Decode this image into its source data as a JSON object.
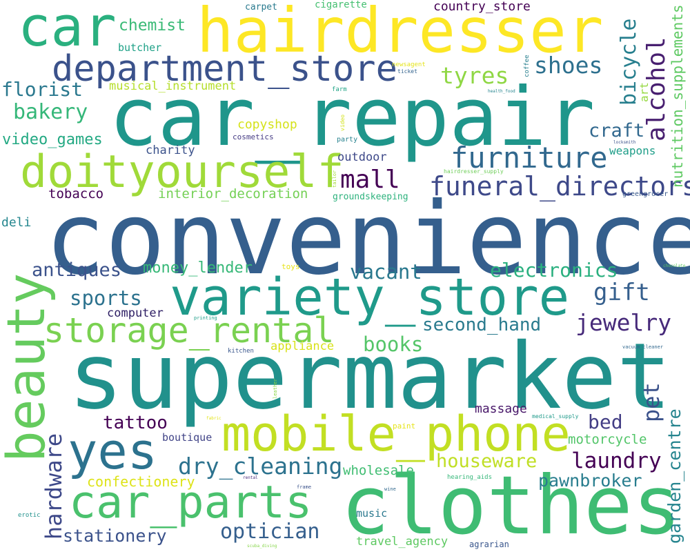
{
  "wordcloud": {
    "words": [
      {
        "text": "convenience",
        "color": "#355f8d"
      },
      {
        "text": "supermarket",
        "color": "#21918c"
      },
      {
        "text": "car_repair",
        "color": "#1f968b"
      },
      {
        "text": "clothes",
        "color": "#3fbc73"
      },
      {
        "text": "hairdresser",
        "color": "#fde725"
      },
      {
        "text": "car",
        "color": "#2ab07f"
      },
      {
        "text": "variety_store",
        "color": "#1f9a8a"
      },
      {
        "text": "mobile_phone",
        "color": "#c2df23"
      },
      {
        "text": "doityourself",
        "color": "#a0da39"
      },
      {
        "text": "department_store",
        "color": "#3b528b"
      },
      {
        "text": "car_parts",
        "color": "#4ac16d"
      },
      {
        "text": "yes",
        "color": "#2c728e"
      },
      {
        "text": "beauty",
        "color": "#65cb5e"
      },
      {
        "text": "storage_rental",
        "color": "#7ad151"
      },
      {
        "text": "furniture",
        "color": "#31688e"
      },
      {
        "text": "funeral_directors",
        "color": "#3e4989"
      },
      {
        "text": "mall",
        "color": "#440154"
      },
      {
        "text": "tyres",
        "color": "#8fd744"
      },
      {
        "text": "shoes",
        "color": "#2d708e"
      },
      {
        "text": "alcohol",
        "color": "#481f70"
      },
      {
        "text": "bicycle",
        "color": "#277f8e"
      },
      {
        "text": "nutrition_supplements",
        "color": "#5ec962"
      },
      {
        "text": "florist",
        "color": "#2a788e"
      },
      {
        "text": "bakery",
        "color": "#35b779"
      },
      {
        "text": "video_games",
        "color": "#23a983"
      },
      {
        "text": "chemist",
        "color": "#3aba76"
      },
      {
        "text": "butcher",
        "color": "#1fa187"
      },
      {
        "text": "musical_instrument",
        "color": "#b5de2b"
      },
      {
        "text": "copyshop",
        "color": "#d5e21a"
      },
      {
        "text": "charity",
        "color": "#3b528b"
      },
      {
        "text": "tobacco",
        "color": "#440154"
      },
      {
        "text": "interior_decoration",
        "color": "#74d055"
      },
      {
        "text": "groundskeeping",
        "color": "#2db27d"
      },
      {
        "text": "outdoor",
        "color": "#3e4989"
      },
      {
        "text": "cosmetics",
        "color": "#443a83"
      },
      {
        "text": "party",
        "color": "#26828e"
      },
      {
        "text": "craft",
        "color": "#31688e"
      },
      {
        "text": "weapons",
        "color": "#1f9e89"
      },
      {
        "text": "art",
        "color": "#95d840"
      },
      {
        "text": "deli",
        "color": "#24868e"
      },
      {
        "text": "antiques",
        "color": "#3b528b"
      },
      {
        "text": "money_lender",
        "color": "#37b878"
      },
      {
        "text": "vacant",
        "color": "#2a788e"
      },
      {
        "text": "electronics",
        "color": "#2ab07f"
      },
      {
        "text": "gift",
        "color": "#355f8d"
      },
      {
        "text": "sports",
        "color": "#2c728e"
      },
      {
        "text": "computer",
        "color": "#2d1e63"
      },
      {
        "text": "second_hand",
        "color": "#2a7b8e"
      },
      {
        "text": "jewelry",
        "color": "#472a7a"
      },
      {
        "text": "books",
        "color": "#54c568"
      },
      {
        "text": "appliance",
        "color": "#d8e219"
      },
      {
        "text": "pet",
        "color": "#3b528b"
      },
      {
        "text": "bed",
        "color": "#433e85"
      },
      {
        "text": "garden_centre",
        "color": "#25848e"
      },
      {
        "text": "hardware",
        "color": "#3e4989"
      },
      {
        "text": "tattoo",
        "color": "#440154"
      },
      {
        "text": "boutique",
        "color": "#414487"
      },
      {
        "text": "massage",
        "color": "#481769"
      },
      {
        "text": "motorcycle",
        "color": "#52c569"
      },
      {
        "text": "laundry",
        "color": "#440154"
      },
      {
        "text": "dry_cleaning",
        "color": "#2c728e"
      },
      {
        "text": "houseware",
        "color": "#c0df25"
      },
      {
        "text": "wholesale",
        "color": "#40bd72"
      },
      {
        "text": "pawnbroker",
        "color": "#287d8e"
      },
      {
        "text": "confectionery",
        "color": "#dde318"
      },
      {
        "text": "stationery",
        "color": "#3b528b"
      },
      {
        "text": "optician",
        "color": "#355f8d"
      },
      {
        "text": "music",
        "color": "#2a788e"
      },
      {
        "text": "travel_agency",
        "color": "#5ec962"
      },
      {
        "text": "agrarian",
        "color": "#39568c"
      },
      {
        "text": "country_store",
        "color": "#440154"
      },
      {
        "text": "carpet",
        "color": "#297a8e"
      },
      {
        "text": "cigarette",
        "color": "#44bf70"
      },
      {
        "text": "newsagent",
        "color": "#e5e419"
      },
      {
        "text": "ticket",
        "color": "#33638d"
      },
      {
        "text": "coffee",
        "color": "#277f8e"
      },
      {
        "text": "farm",
        "color": "#20a486"
      },
      {
        "text": "health_food",
        "color": "#25848e"
      },
      {
        "text": "video",
        "color": "#d2e21b"
      },
      {
        "text": "locksmith",
        "color": "#3b528b"
      },
      {
        "text": "hairdresser_supply",
        "color": "#6ece58"
      },
      {
        "text": "tailor",
        "color": "#a2da37"
      },
      {
        "text": "greengrocer",
        "color": "#38598c"
      },
      {
        "text": "toys",
        "color": "#e7e419"
      },
      {
        "text": "photo",
        "color": "#355f8d"
      },
      {
        "text": "chocolate",
        "color": "#5ec962"
      },
      {
        "text": "printing",
        "color": "#1f9e89"
      },
      {
        "text": "kitchen",
        "color": "#39568c"
      },
      {
        "text": "vacuum_cleaner",
        "color": "#31688e"
      },
      {
        "text": "leather",
        "color": "#8bd646"
      },
      {
        "text": "fabric",
        "color": "#e2e418"
      },
      {
        "text": "paint",
        "color": "#e5e419"
      },
      {
        "text": "medical_supply",
        "color": "#1f9a8a"
      },
      {
        "text": "rental",
        "color": "#482878"
      },
      {
        "text": "hearing_aids",
        "color": "#35b779"
      },
      {
        "text": "frame",
        "color": "#3b528b"
      },
      {
        "text": "wine",
        "color": "#31688e"
      },
      {
        "text": "erotic",
        "color": "#21918c"
      },
      {
        "text": "scuba_diving",
        "color": "#86d549"
      }
    ]
  }
}
